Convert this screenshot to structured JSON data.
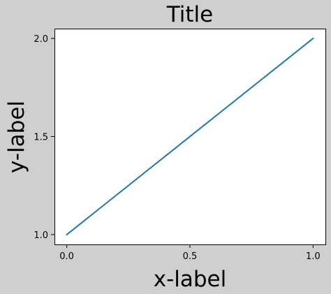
{
  "chart_data": {
    "type": "line",
    "title": "Title",
    "xlabel": "x-label",
    "ylabel": "y-label",
    "x": [
      0.0,
      1.0
    ],
    "series": [
      {
        "values": [
          1.0,
          2.0
        ],
        "color": "#1f77b4"
      }
    ],
    "xlim": [
      -0.05,
      1.05
    ],
    "ylim": [
      0.95,
      2.05
    ],
    "xticks": [
      0.0,
      0.5,
      1.0
    ],
    "xtick_labels": [
      "0.0",
      "0.5",
      "1.0"
    ],
    "yticks": [
      1.0,
      1.5,
      2.0
    ],
    "ytick_labels": [
      "1.0",
      "1.5",
      "2.0"
    ],
    "grid": false,
    "legend": false
  },
  "colors": {
    "figure_background": "#cfcfcf",
    "plot_background": "#ffffff",
    "axes_edge": "#000000"
  }
}
